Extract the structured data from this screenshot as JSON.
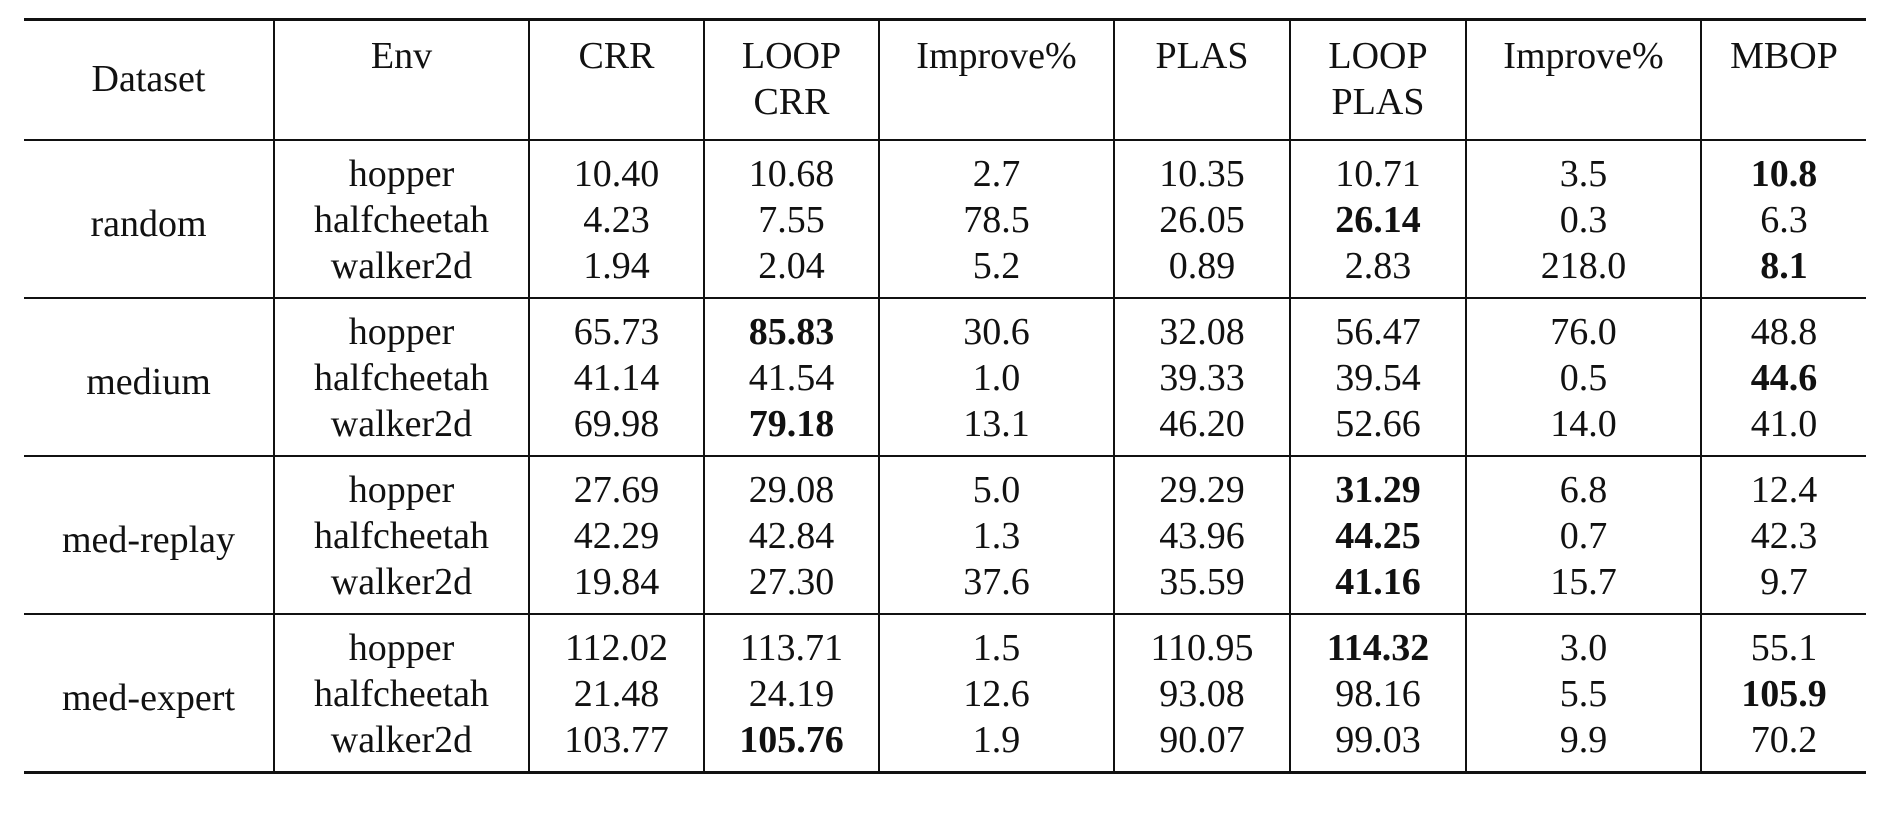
{
  "header": {
    "dataset": "Dataset",
    "env": "Env",
    "crr": "CRR",
    "loop_crr_line1": "LOOP",
    "loop_crr_line2": "CRR",
    "improve1": "Improve%",
    "plas": "PLAS",
    "loop_plas_line1": "LOOP",
    "loop_plas_line2": "PLAS",
    "improve2": "Improve%",
    "mbop": "MBOP"
  },
  "groups": [
    {
      "dataset": "random",
      "rows": [
        {
          "env": "hopper",
          "crr": "10.40",
          "loop_crr": "10.68",
          "improve1": "2.7",
          "plas": "10.35",
          "loop_plas": "10.71",
          "improve2": "3.5",
          "mbop": "10.8"
        },
        {
          "env": "halfcheetah",
          "crr": "4.23",
          "loop_crr": "7.55",
          "improve1": "78.5",
          "plas": "26.05",
          "loop_plas": "26.14",
          "improve2": "0.3",
          "mbop": "6.3"
        },
        {
          "env": "walker2d",
          "crr": "1.94",
          "loop_crr": "2.04",
          "improve1": "5.2",
          "plas": "0.89",
          "loop_plas": "2.83",
          "improve2": "218.0",
          "mbop": "8.1"
        }
      ]
    },
    {
      "dataset": "medium",
      "rows": [
        {
          "env": "hopper",
          "crr": "65.73",
          "loop_crr": "85.83",
          "improve1": "30.6",
          "plas": "32.08",
          "loop_plas": "56.47",
          "improve2": "76.0",
          "mbop": "48.8"
        },
        {
          "env": "halfcheetah",
          "crr": "41.14",
          "loop_crr": "41.54",
          "improve1": "1.0",
          "plas": "39.33",
          "loop_plas": "39.54",
          "improve2": "0.5",
          "mbop": "44.6"
        },
        {
          "env": "walker2d",
          "crr": "69.98",
          "loop_crr": "79.18",
          "improve1": "13.1",
          "plas": "46.20",
          "loop_plas": "52.66",
          "improve2": "14.0",
          "mbop": "41.0"
        }
      ]
    },
    {
      "dataset": "med-replay",
      "rows": [
        {
          "env": "hopper",
          "crr": "27.69",
          "loop_crr": "29.08",
          "improve1": "5.0",
          "plas": "29.29",
          "loop_plas": "31.29",
          "improve2": "6.8",
          "mbop": "12.4"
        },
        {
          "env": "halfcheetah",
          "crr": "42.29",
          "loop_crr": "42.84",
          "improve1": "1.3",
          "plas": "43.96",
          "loop_plas": "44.25",
          "improve2": "0.7",
          "mbop": "42.3"
        },
        {
          "env": "walker2d",
          "crr": "19.84",
          "loop_crr": "27.30",
          "improve1": "37.6",
          "plas": "35.59",
          "loop_plas": "41.16",
          "improve2": "15.7",
          "mbop": "9.7"
        }
      ]
    },
    {
      "dataset": "med-expert",
      "rows": [
        {
          "env": "hopper",
          "crr": "112.02",
          "loop_crr": "113.71",
          "improve1": "1.5",
          "plas": "110.95",
          "loop_plas": "114.32",
          "improve2": "3.0",
          "mbop": "55.1"
        },
        {
          "env": "halfcheetah",
          "crr": "21.48",
          "loop_crr": "24.19",
          "improve1": "12.6",
          "plas": "93.08",
          "loop_plas": "98.16",
          "improve2": "5.5",
          "mbop": "105.9"
        },
        {
          "env": "walker2d",
          "crr": "103.77",
          "loop_crr": "105.76",
          "improve1": "1.9",
          "plas": "90.07",
          "loop_plas": "99.03",
          "improve2": "9.9",
          "mbop": "70.2"
        }
      ]
    }
  ]
}
